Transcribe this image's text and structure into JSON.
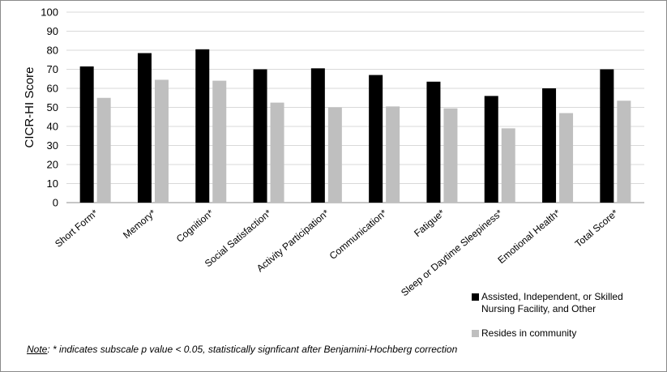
{
  "chart_data": {
    "type": "bar",
    "ylabel": "CICR-HI Score",
    "ylim": [
      0,
      100
    ],
    "yticks": [
      0,
      10,
      20,
      30,
      40,
      50,
      60,
      70,
      80,
      90,
      100
    ],
    "grid": true,
    "legend_position": "bottom-right",
    "categories": [
      "Short Form*",
      "Memory*",
      "Cognition*",
      "Social Satisfaction*",
      "Activity Participation*",
      "Communication*",
      "Fatigue*",
      "Sleep or Daytime Sleepiness*",
      "Emotional Health*",
      "Total Score*"
    ],
    "series": [
      {
        "name": "Assisted, Independent, or Skilled Nursing Facility, and Other",
        "name_lines": [
          "Assisted, Independent, or Skilled",
          "Nursing Facility, and Other"
        ],
        "color": "#000000",
        "values": [
          71.5,
          78.5,
          80.5,
          70,
          70.5,
          67,
          63.5,
          56,
          60,
          70
        ]
      },
      {
        "name": "Resides in community",
        "name_lines": [
          "Resides in community"
        ],
        "color": "#bfbfbf",
        "values": [
          55,
          64.5,
          64,
          52.5,
          50,
          50.5,
          49.5,
          39,
          47,
          53.5
        ]
      }
    ]
  },
  "note": {
    "label": "Note",
    "text": ": * indicates subscale p value < 0.05, statistically signficant after Benjamini-Hochberg correction"
  }
}
